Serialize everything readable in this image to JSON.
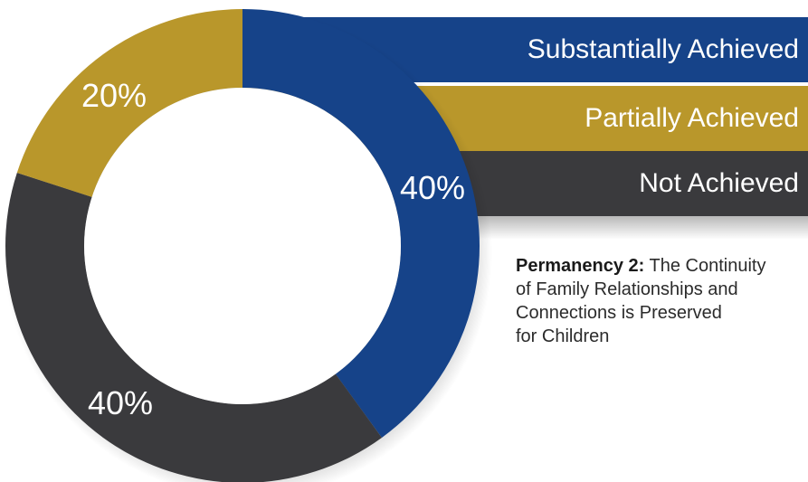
{
  "chart_data": {
    "type": "pie",
    "categories": [
      "Substantially Achieved",
      "Partially Achieved",
      "Not Achieved"
    ],
    "values": [
      40,
      20,
      40
    ],
    "value_labels": [
      "40%",
      "40%",
      "20%"
    ],
    "colors": [
      "#164389",
      "#3a3a3d",
      "#b9972b"
    ],
    "slice_order": [
      "Substantially Achieved",
      "Not Achieved",
      "Partially Achieved"
    ],
    "slice_values": [
      40,
      40,
      20
    ],
    "title_bold": "Permanency 2:",
    "title": "The Continuity of Family Relationships and Connections is Preserved for Children",
    "legend_position": "top-right"
  },
  "legend": {
    "items": [
      {
        "label": "Substantially Achieved",
        "color": "#164389"
      },
      {
        "label": "Partially Achieved",
        "color": "#b9972b"
      },
      {
        "label": "Not Achieved",
        "color": "#3a3a3d"
      }
    ]
  },
  "caption": {
    "bold": "Permanency 2:",
    "line1": " The Continuity",
    "line2": "of Family Relationships and",
    "line3": "Connections is Preserved",
    "line4": "for Children"
  }
}
